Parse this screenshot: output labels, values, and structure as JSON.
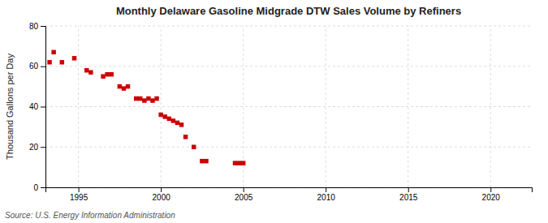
{
  "chart_data": {
    "type": "scatter",
    "title": "Monthly Delaware Gasoline Midgrade DTW Sales Volume by Refiners",
    "ylabel": "Thousand Gallons per Day",
    "source": "Source: U.S. Energy Information Administration",
    "color": "#cc0000",
    "marker": "square",
    "grid": true,
    "xlim": [
      1993.0,
      2022.5
    ],
    "ylim": [
      0,
      80
    ],
    "xticks": [
      1995,
      2000,
      2005,
      2010,
      2015,
      2020
    ],
    "yticks": [
      0,
      20,
      40,
      60,
      80
    ],
    "x": [
      1993.25,
      1993.5,
      1994.0,
      1994.75,
      1995.5,
      1995.75,
      1996.5,
      1996.75,
      1997.0,
      1997.5,
      1997.75,
      1998.0,
      1998.5,
      1998.75,
      1999.0,
      1999.25,
      1999.5,
      1999.75,
      2000.0,
      2000.25,
      2000.5,
      2000.75,
      2001.0,
      2001.25,
      2001.5,
      2002.0,
      2002.5,
      2002.75,
      2004.5,
      2004.75,
      2005.0
    ],
    "values": [
      62,
      67,
      62,
      64,
      58,
      57,
      55,
      56,
      56,
      50,
      49,
      50,
      44,
      44,
      43,
      44,
      43,
      44,
      36,
      35,
      34,
      33,
      32,
      31,
      25,
      20,
      13,
      13,
      12,
      12,
      12
    ]
  }
}
